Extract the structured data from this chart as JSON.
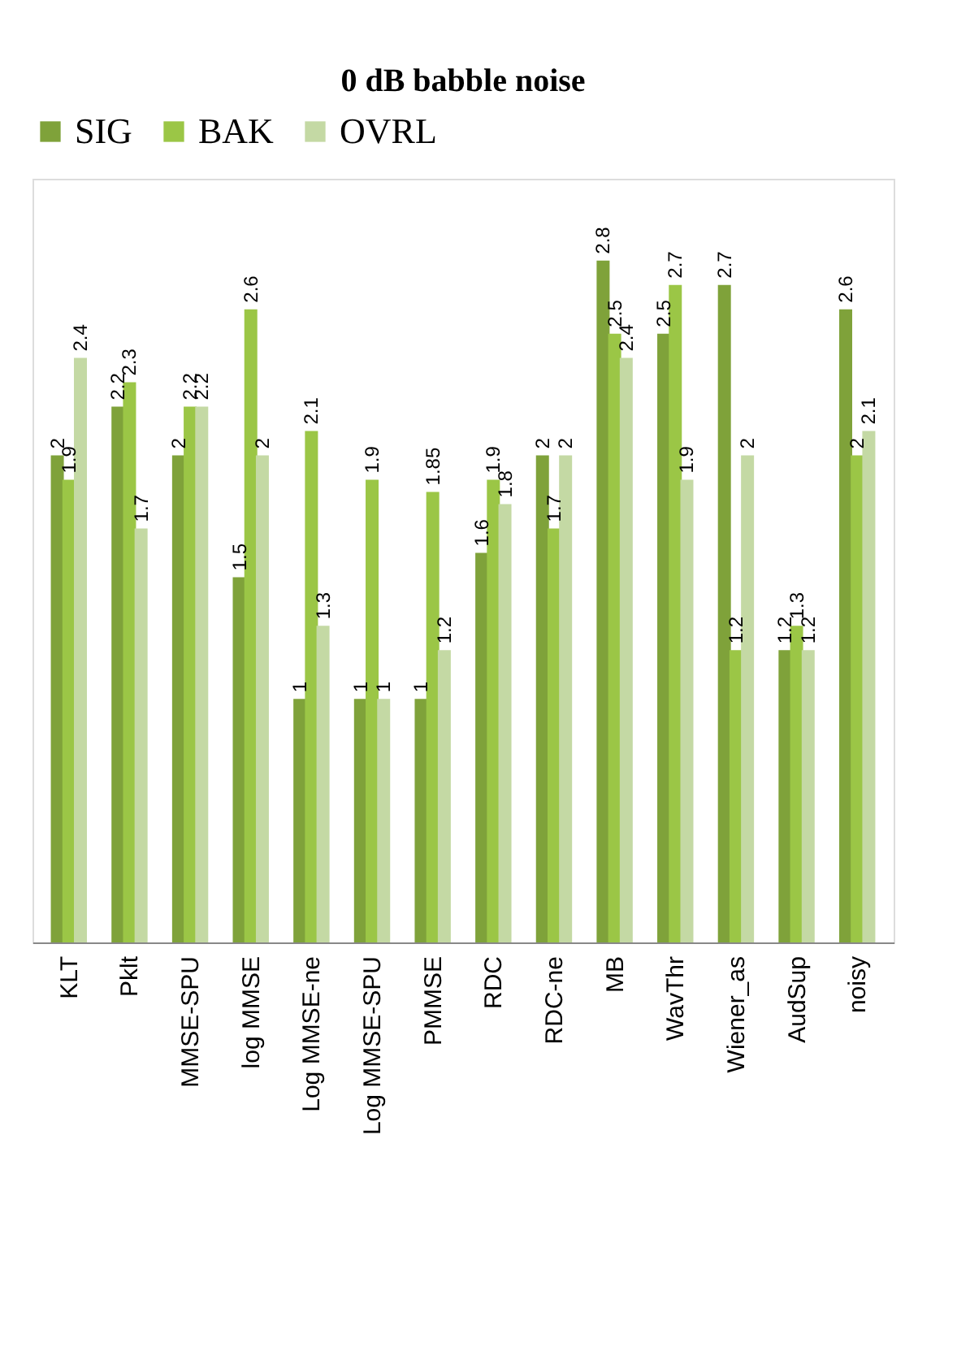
{
  "chart_data": {
    "type": "bar",
    "title": "0 dB babble noise",
    "categories": [
      "KLT",
      "Pklt",
      "MMSE-SPU",
      "log MMSE",
      "Log MMSE-ne",
      "Log MMSE-SPU",
      "PMMSE",
      "RDC",
      "RDC-ne",
      "MB",
      "WavThr",
      "Wiener_as",
      "AudSup",
      "noisy"
    ],
    "series": [
      {
        "name": "SIG",
        "color": "#7fa23a",
        "values": [
          2,
          2.2,
          2,
          1.5,
          1,
          1,
          1,
          1.6,
          2,
          2.8,
          2.5,
          2.7,
          1.2,
          2.6
        ]
      },
      {
        "name": "BAK",
        "color": "#9bc646",
        "values": [
          1.9,
          2.3,
          2.2,
          2.6,
          2.1,
          1.9,
          1.85,
          1.9,
          1.7,
          2.5,
          2.7,
          1.2,
          1.3,
          2
        ]
      },
      {
        "name": "OVRL",
        "color": "#c4d9a4",
        "values": [
          2.4,
          1.7,
          2.2,
          2,
          1.3,
          1,
          1.2,
          1.8,
          2,
          2.4,
          1.9,
          2,
          1.2,
          2.1
        ]
      }
    ],
    "data_labels": true,
    "legend": "top",
    "grid": false
  }
}
